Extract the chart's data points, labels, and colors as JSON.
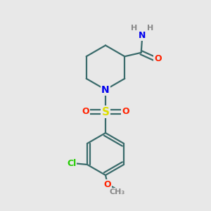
{
  "background_color": "#e8e8e8",
  "bond_color": "#3a6b6b",
  "atom_colors": {
    "N": "#0000ee",
    "O": "#ff2200",
    "S": "#dddd00",
    "Cl": "#22cc00",
    "H": "#888888"
  },
  "figsize": [
    3.0,
    3.0
  ],
  "dpi": 100,
  "xlim": [
    0,
    10
  ],
  "ylim": [
    0,
    10
  ]
}
